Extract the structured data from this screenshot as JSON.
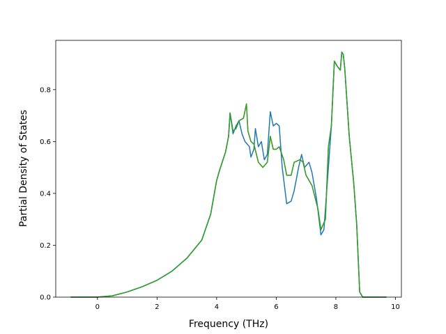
{
  "chart_data": {
    "type": "line",
    "xlabel": "Frequency (THz)",
    "ylabel": "Partial Density of States",
    "xlim": [
      -1.4,
      10.2
    ],
    "ylim": [
      0.0,
      0.99
    ],
    "xticks": [
      0,
      2,
      4,
      6,
      8,
      10
    ],
    "yticks": [
      0.0,
      0.2,
      0.4,
      0.6,
      0.8
    ],
    "ytick_labels": [
      "0.0",
      "0.2",
      "0.4",
      "0.6",
      "0.8"
    ],
    "grid": false,
    "legend": "none",
    "series": [
      {
        "color": "#ff7f0e",
        "points": [
          [
            -0.9,
            0
          ],
          [
            0,
            0
          ],
          [
            0.5,
            0.005
          ],
          [
            1.0,
            0.02
          ],
          [
            1.5,
            0.04
          ],
          [
            2.0,
            0.065
          ],
          [
            2.5,
            0.1
          ],
          [
            3.0,
            0.15
          ],
          [
            3.5,
            0.22
          ],
          [
            3.8,
            0.32
          ],
          [
            4.0,
            0.45
          ],
          [
            4.1,
            0.49
          ],
          [
            4.3,
            0.56
          ],
          [
            4.4,
            0.62
          ],
          [
            4.45,
            0.71
          ],
          [
            4.55,
            0.64
          ],
          [
            4.65,
            0.65
          ],
          [
            4.75,
            0.68
          ],
          [
            4.9,
            0.69
          ],
          [
            5.0,
            0.745
          ],
          [
            5.05,
            0.64
          ],
          [
            5.15,
            0.6
          ],
          [
            5.25,
            0.59
          ],
          [
            5.4,
            0.52
          ],
          [
            5.55,
            0.5
          ],
          [
            5.7,
            0.52
          ],
          [
            5.8,
            0.62
          ],
          [
            5.9,
            0.57
          ],
          [
            6.0,
            0.57
          ],
          [
            6.1,
            0.58
          ],
          [
            6.25,
            0.53
          ],
          [
            6.35,
            0.47
          ],
          [
            6.5,
            0.47
          ],
          [
            6.6,
            0.52
          ],
          [
            6.8,
            0.53
          ],
          [
            6.9,
            0.52
          ],
          [
            7.0,
            0.47
          ],
          [
            7.2,
            0.43
          ],
          [
            7.4,
            0.34
          ],
          [
            7.5,
            0.26
          ],
          [
            7.65,
            0.3
          ],
          [
            7.75,
            0.58
          ],
          [
            7.85,
            0.66
          ],
          [
            7.95,
            0.91
          ],
          [
            8.05,
            0.89
          ],
          [
            8.15,
            0.875
          ],
          [
            8.2,
            0.945
          ],
          [
            8.25,
            0.935
          ],
          [
            8.3,
            0.88
          ],
          [
            8.45,
            0.62
          ],
          [
            8.6,
            0.44
          ],
          [
            8.7,
            0.28
          ],
          [
            8.8,
            0.02
          ],
          [
            8.9,
            0
          ],
          [
            9.7,
            0
          ]
        ]
      },
      {
        "color": "#1f77b4",
        "points": [
          [
            -0.9,
            0
          ],
          [
            0,
            0
          ],
          [
            0.5,
            0.005
          ],
          [
            1.0,
            0.02
          ],
          [
            1.5,
            0.04
          ],
          [
            2.0,
            0.065
          ],
          [
            2.5,
            0.1
          ],
          [
            3.0,
            0.15
          ],
          [
            3.5,
            0.22
          ],
          [
            3.8,
            0.32
          ],
          [
            4.0,
            0.45
          ],
          [
            4.1,
            0.49
          ],
          [
            4.3,
            0.56
          ],
          [
            4.4,
            0.62
          ],
          [
            4.45,
            0.71
          ],
          [
            4.55,
            0.63
          ],
          [
            4.65,
            0.66
          ],
          [
            4.75,
            0.68
          ],
          [
            4.85,
            0.63
          ],
          [
            4.95,
            0.6
          ],
          [
            5.1,
            0.58
          ],
          [
            5.15,
            0.54
          ],
          [
            5.25,
            0.57
          ],
          [
            5.3,
            0.65
          ],
          [
            5.4,
            0.58
          ],
          [
            5.5,
            0.6
          ],
          [
            5.6,
            0.53
          ],
          [
            5.7,
            0.55
          ],
          [
            5.8,
            0.715
          ],
          [
            5.9,
            0.66
          ],
          [
            6.0,
            0.67
          ],
          [
            6.1,
            0.66
          ],
          [
            6.2,
            0.5
          ],
          [
            6.35,
            0.36
          ],
          [
            6.5,
            0.37
          ],
          [
            6.6,
            0.41
          ],
          [
            6.75,
            0.5
          ],
          [
            6.85,
            0.55
          ],
          [
            6.95,
            0.5
          ],
          [
            7.1,
            0.52
          ],
          [
            7.2,
            0.48
          ],
          [
            7.35,
            0.38
          ],
          [
            7.5,
            0.24
          ],
          [
            7.6,
            0.26
          ],
          [
            7.75,
            0.5
          ],
          [
            7.85,
            0.66
          ],
          [
            7.95,
            0.91
          ],
          [
            8.05,
            0.89
          ],
          [
            8.15,
            0.875
          ],
          [
            8.2,
            0.945
          ],
          [
            8.25,
            0.935
          ],
          [
            8.3,
            0.88
          ],
          [
            8.45,
            0.62
          ],
          [
            8.6,
            0.44
          ],
          [
            8.7,
            0.28
          ],
          [
            8.8,
            0.02
          ],
          [
            8.9,
            0
          ],
          [
            9.7,
            0
          ]
        ]
      },
      {
        "color": "#2ca02c",
        "points": [
          [
            -0.9,
            0
          ],
          [
            0,
            0
          ],
          [
            0.5,
            0.005
          ],
          [
            1.0,
            0.02
          ],
          [
            1.5,
            0.04
          ],
          [
            2.0,
            0.065
          ],
          [
            2.5,
            0.1
          ],
          [
            3.0,
            0.15
          ],
          [
            3.5,
            0.22
          ],
          [
            3.8,
            0.32
          ],
          [
            4.0,
            0.45
          ],
          [
            4.1,
            0.49
          ],
          [
            4.3,
            0.56
          ],
          [
            4.4,
            0.62
          ],
          [
            4.45,
            0.71
          ],
          [
            4.55,
            0.64
          ],
          [
            4.65,
            0.65
          ],
          [
            4.75,
            0.68
          ],
          [
            4.9,
            0.69
          ],
          [
            5.0,
            0.745
          ],
          [
            5.05,
            0.64
          ],
          [
            5.15,
            0.6
          ],
          [
            5.25,
            0.59
          ],
          [
            5.4,
            0.52
          ],
          [
            5.55,
            0.5
          ],
          [
            5.7,
            0.52
          ],
          [
            5.8,
            0.62
          ],
          [
            5.9,
            0.57
          ],
          [
            6.0,
            0.57
          ],
          [
            6.1,
            0.58
          ],
          [
            6.25,
            0.53
          ],
          [
            6.35,
            0.47
          ],
          [
            6.5,
            0.47
          ],
          [
            6.6,
            0.52
          ],
          [
            6.8,
            0.53
          ],
          [
            6.9,
            0.52
          ],
          [
            7.0,
            0.47
          ],
          [
            7.2,
            0.43
          ],
          [
            7.4,
            0.34
          ],
          [
            7.5,
            0.26
          ],
          [
            7.65,
            0.3
          ],
          [
            7.75,
            0.58
          ],
          [
            7.85,
            0.66
          ],
          [
            7.95,
            0.91
          ],
          [
            8.05,
            0.89
          ],
          [
            8.15,
            0.875
          ],
          [
            8.2,
            0.945
          ],
          [
            8.25,
            0.935
          ],
          [
            8.3,
            0.88
          ],
          [
            8.45,
            0.62
          ],
          [
            8.6,
            0.44
          ],
          [
            8.7,
            0.28
          ],
          [
            8.8,
            0.02
          ],
          [
            8.9,
            0
          ],
          [
            9.7,
            0
          ]
        ]
      }
    ]
  }
}
